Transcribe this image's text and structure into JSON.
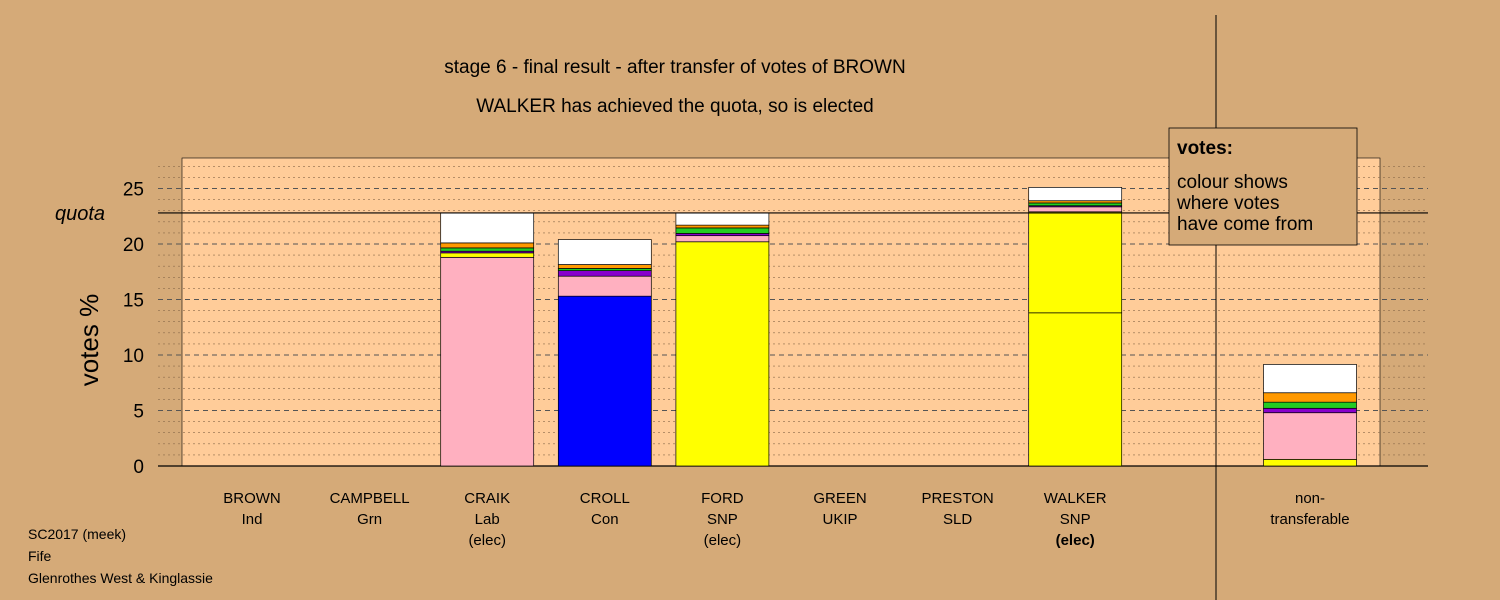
{
  "header": {
    "line1": "stage 6 - final result - after transfer of votes of BROWN",
    "line2": "WALKER has achieved the quota, so is elected"
  },
  "legend": {
    "title": "votes:",
    "lines": [
      "colour shows",
      "where votes",
      "have come from"
    ]
  },
  "footer": {
    "line1": "SC2017 (meek)",
    "line2": "Fife",
    "line3": "Glenrothes West & Kinglassie"
  },
  "colors": {
    "background": "#D5AA78",
    "plot_area": "#FFCC99",
    "Lab": "#FFB0C0",
    "Con": "#0000FF",
    "SNP": "#FFFF00",
    "Grn": "#22CC22",
    "SLD": "#FF9900",
    "UKIP": "#8800CC",
    "Ind": "#B0B0B0",
    "non-transferable": "#FFFFFF"
  },
  "chart_data": {
    "type": "bar",
    "stacked": true,
    "ylabel": "votes %",
    "ylim": [
      0,
      27.5
    ],
    "yticks": [
      0,
      5,
      10,
      15,
      20,
      25
    ],
    "quota": 22.8,
    "quota_label": "quota",
    "grid": true,
    "legend_position": "top-right",
    "candidates": [
      {
        "name": "BROWN",
        "party": "Ind",
        "status": "",
        "segments": []
      },
      {
        "name": "CAMPBELL",
        "party": "Grn",
        "status": "",
        "segments": []
      },
      {
        "name": "CRAIK",
        "party": "Lab",
        "status": "(elec)",
        "segments": [
          {
            "from": "Lab",
            "value": 18.8
          },
          {
            "from": "SNP",
            "value": 0.4
          },
          {
            "from": "UKIP",
            "value": 0.15
          },
          {
            "from": "Grn",
            "value": 0.3
          },
          {
            "from": "SLD",
            "value": 0.45
          },
          {
            "from": "non-transferable",
            "value": 2.7
          }
        ]
      },
      {
        "name": "CROLL",
        "party": "Con",
        "status": "",
        "segments": [
          {
            "from": "Con",
            "value": 15.3
          },
          {
            "from": "Lab",
            "value": 1.8
          },
          {
            "from": "UKIP",
            "value": 0.5
          },
          {
            "from": "Grn",
            "value": 0.2
          },
          {
            "from": "SLD",
            "value": 0.35
          },
          {
            "from": "non-transferable",
            "value": 2.25
          }
        ]
      },
      {
        "name": "FORD",
        "party": "SNP",
        "status": "(elec)",
        "segments": [
          {
            "from": "SNP",
            "value": 20.2
          },
          {
            "from": "Lab",
            "value": 0.55
          },
          {
            "from": "UKIP",
            "value": 0.2
          },
          {
            "from": "Grn",
            "value": 0.5
          },
          {
            "from": "SLD",
            "value": 0.25
          },
          {
            "from": "non-transferable",
            "value": 1.1
          }
        ]
      },
      {
        "name": "GREEN",
        "party": "UKIP",
        "status": "",
        "segments": []
      },
      {
        "name": "PRESTON",
        "party": "SLD",
        "status": "",
        "segments": []
      },
      {
        "name": "WALKER",
        "party": "SNP",
        "status": "(elec)",
        "status_bold": true,
        "segments": [
          {
            "from": "SNP",
            "value": 13.8
          },
          {
            "from": "SNP",
            "value": 9.1
          },
          {
            "from": "Lab",
            "value": 0.45
          },
          {
            "from": "UKIP",
            "value": 0.1
          },
          {
            "from": "Grn",
            "value": 0.25
          },
          {
            "from": "SLD",
            "value": 0.2
          },
          {
            "from": "non-transferable",
            "value": 1.2
          }
        ]
      }
    ],
    "non_transferable": {
      "label_line1": "non-",
      "label_line2": "transferable",
      "segments": [
        {
          "from": "SNP",
          "value": 0.6
        },
        {
          "from": "Lab",
          "value": 4.2
        },
        {
          "from": "UKIP",
          "value": 0.4
        },
        {
          "from": "Grn",
          "value": 0.55
        },
        {
          "from": "SLD",
          "value": 0.85
        },
        {
          "from": "non-transferable",
          "value": 2.55
        }
      ]
    }
  }
}
